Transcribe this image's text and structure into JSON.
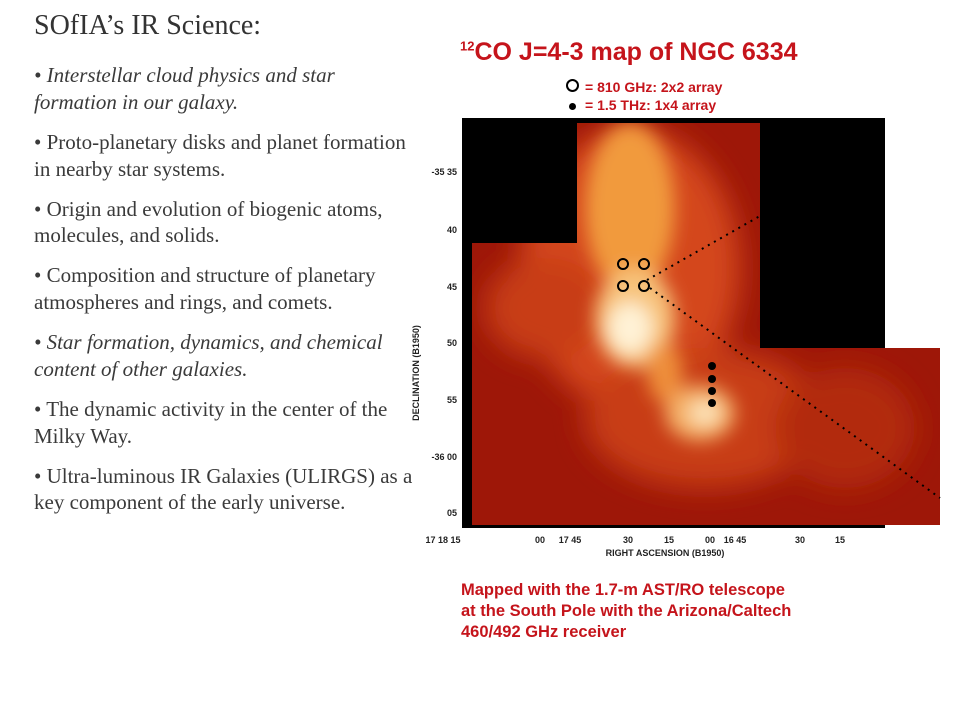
{
  "slide": {
    "title": "SOfIA’s IR Science:",
    "bullets": [
      {
        "text": "• Interstellar cloud physics and star formation in our galaxy.",
        "italic": true
      },
      {
        "text": "• Proto-planetary disks and planet formation in nearby star systems.",
        "italic": false
      },
      {
        "text": "• Origin and evolution of biogenic atoms, molecules, and solids.",
        "italic": false
      },
      {
        "text": "• Composition and structure of planetary atmospheres and rings, and comets.",
        "italic": false
      },
      {
        "text": "• Star formation, dynamics, and chemical content of other galaxies.",
        "italic": true
      },
      {
        "text": "• The dynamic activity in the center of the Milky Way.",
        "italic": false
      },
      {
        "text": "• Ultra-luminous IR Galaxies (ULIRGS) as a key component of the early universe.",
        "italic": false
      }
    ]
  },
  "figure": {
    "title_sup": "12",
    "title": "CO J=4-3 map of NGC 6334",
    "legend": [
      {
        "symbol": "ring",
        "text": "= 810 GHz: 2x2 array"
      },
      {
        "symbol": "dot",
        "text": "= 1.5 THz:  1x4 array"
      }
    ],
    "y_axis_label": "DECLINATION (B1950)",
    "y_ticks": [
      "-35 35",
      "40",
      "45",
      "50",
      "55",
      "-36 00",
      "05"
    ],
    "x_axis_label": "RIGHT ASCENSION (B1950)",
    "x_ticks": [
      "17 18 15",
      "00",
      "17 45",
      "30",
      "15",
      "00",
      "16 45",
      "30",
      "15"
    ],
    "caption_lines": [
      "Mapped with the 1.7-m AST/RO telescope",
      "at the South Pole with the Arizona/Caltech",
      "460/492 GHz receiver"
    ],
    "colors": {
      "caption": "#c5141b",
      "map_bg": "#000000"
    }
  }
}
